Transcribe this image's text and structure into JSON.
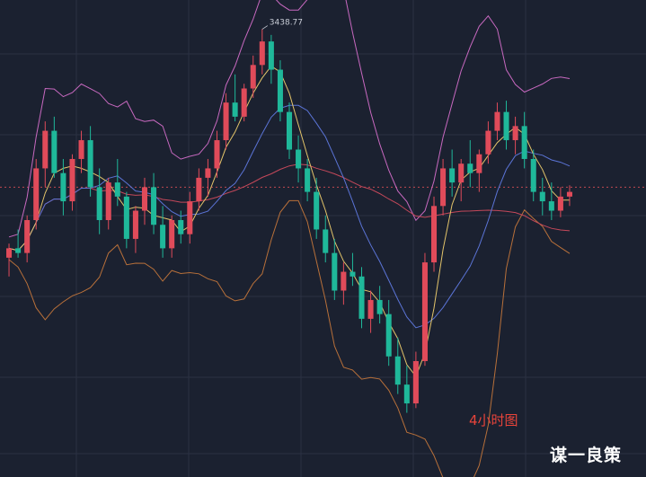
{
  "chart_data": {
    "type": "candlestick",
    "timeframe_label": "4小时图",
    "watermark": "谋一良策",
    "high_marker": "3438.77",
    "colors": {
      "background": "#1b2130",
      "grid": "#2b3142",
      "up": "#e04b5a",
      "down": "#1fb89a",
      "ma_fast": "#e3c46a",
      "ma_mid": "#5b74d6",
      "ma_slow": "#c4485a",
      "boll_upper": "#c869c0",
      "boll_lower": "#b8703a",
      "price_line": "#c04850"
    },
    "price_line": 3270,
    "y_range": [
      3020,
      3450
    ],
    "candles": [
      [
        3195,
        3210,
        3175,
        3205
      ],
      [
        3205,
        3225,
        3195,
        3200
      ],
      [
        3200,
        3240,
        3190,
        3235
      ],
      [
        3235,
        3300,
        3225,
        3290
      ],
      [
        3290,
        3340,
        3270,
        3330
      ],
      [
        3330,
        3345,
        3280,
        3285
      ],
      [
        3285,
        3300,
        3240,
        3255
      ],
      [
        3255,
        3305,
        3245,
        3300
      ],
      [
        3300,
        3330,
        3285,
        3320
      ],
      [
        3320,
        3335,
        3260,
        3270
      ],
      [
        3270,
        3290,
        3220,
        3235
      ],
      [
        3235,
        3280,
        3225,
        3275
      ],
      [
        3275,
        3300,
        3250,
        3260
      ],
      [
        3260,
        3265,
        3205,
        3215
      ],
      [
        3215,
        3250,
        3200,
        3245
      ],
      [
        3245,
        3280,
        3230,
        3270
      ],
      [
        3270,
        3285,
        3220,
        3230
      ],
      [
        3230,
        3250,
        3195,
        3205
      ],
      [
        3205,
        3240,
        3195,
        3235
      ],
      [
        3235,
        3245,
        3210,
        3220
      ],
      [
        3220,
        3265,
        3210,
        3255
      ],
      [
        3255,
        3290,
        3245,
        3280
      ],
      [
        3280,
        3300,
        3260,
        3290
      ],
      [
        3290,
        3330,
        3280,
        3320
      ],
      [
        3320,
        3370,
        3310,
        3360
      ],
      [
        3360,
        3390,
        3340,
        3345
      ],
      [
        3345,
        3380,
        3340,
        3375
      ],
      [
        3375,
        3410,
        3365,
        3400
      ],
      [
        3400,
        3438,
        3390,
        3425
      ],
      [
        3425,
        3432,
        3380,
        3395
      ],
      [
        3395,
        3405,
        3340,
        3350
      ],
      [
        3350,
        3360,
        3300,
        3310
      ],
      [
        3310,
        3325,
        3275,
        3290
      ],
      [
        3290,
        3300,
        3255,
        3265
      ],
      [
        3265,
        3280,
        3215,
        3225
      ],
      [
        3225,
        3240,
        3190,
        3200
      ],
      [
        3200,
        3215,
        3150,
        3160
      ],
      [
        3160,
        3190,
        3145,
        3180
      ],
      [
        3180,
        3200,
        3165,
        3175
      ],
      [
        3175,
        3185,
        3120,
        3130
      ],
      [
        3130,
        3160,
        3115,
        3150
      ],
      [
        3150,
        3165,
        3125,
        3135
      ],
      [
        3135,
        3150,
        3080,
        3090
      ],
      [
        3090,
        3110,
        3050,
        3060
      ],
      [
        3060,
        3080,
        3030,
        3040
      ],
      [
        3040,
        3095,
        3035,
        3085
      ],
      [
        3085,
        3200,
        3080,
        3190
      ],
      [
        3190,
        3260,
        3180,
        3250
      ],
      [
        3250,
        3300,
        3240,
        3290
      ],
      [
        3290,
        3310,
        3260,
        3275
      ],
      [
        3275,
        3300,
        3255,
        3295
      ],
      [
        3295,
        3320,
        3270,
        3285
      ],
      [
        3285,
        3310,
        3265,
        3305
      ],
      [
        3305,
        3340,
        3295,
        3330
      ],
      [
        3330,
        3360,
        3320,
        3350
      ],
      [
        3350,
        3362,
        3310,
        3320
      ],
      [
        3320,
        3345,
        3305,
        3335
      ],
      [
        3335,
        3350,
        3290,
        3300
      ],
      [
        3300,
        3310,
        3255,
        3265
      ],
      [
        3265,
        3280,
        3240,
        3255
      ],
      [
        3255,
        3275,
        3235,
        3245
      ],
      [
        3245,
        3270,
        3238,
        3260
      ],
      [
        3260,
        3272,
        3250,
        3265
      ]
    ]
  }
}
